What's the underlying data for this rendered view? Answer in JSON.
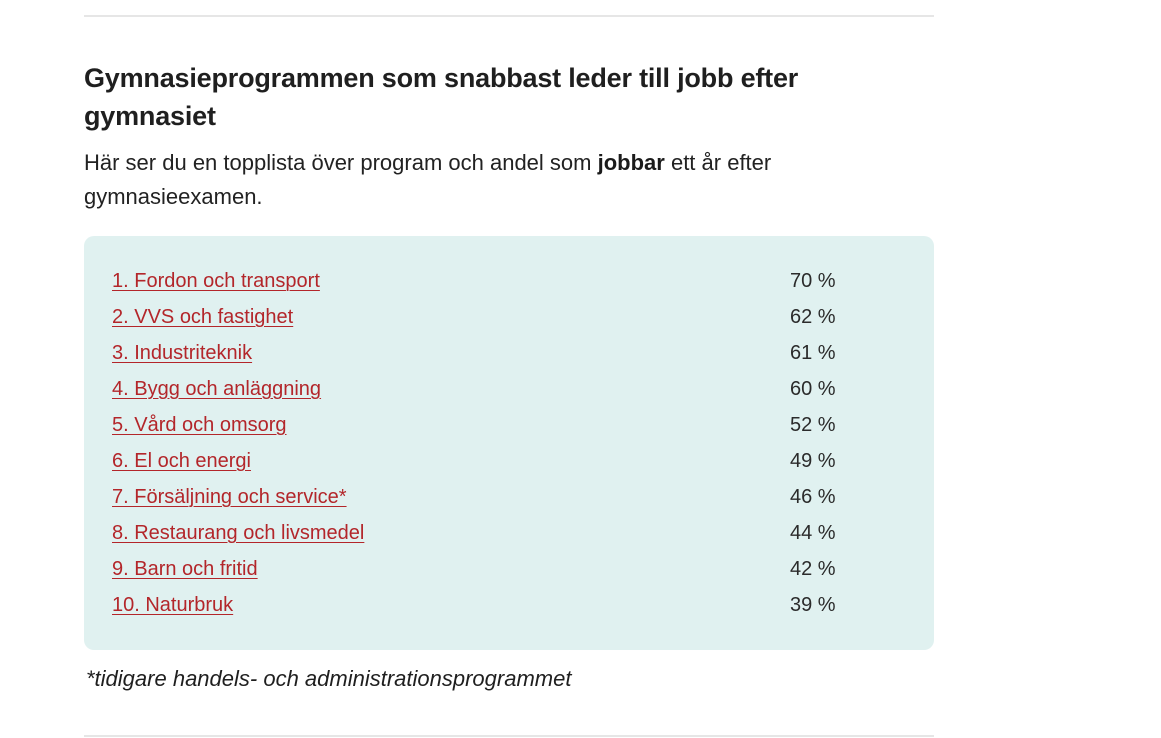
{
  "article": {
    "title": "Gymnasieprogrammen som snabbast leder till jobb efter gymnasiet",
    "intro_before": "Här ser du en topplista över program och andel som ",
    "intro_bold": "jobbar",
    "intro_after": " ett år efter gymnasieexamen.",
    "footnote": "*tidigare handels- och administrationsprogrammet"
  },
  "programs": [
    {
      "label": "1. Fordon och transport",
      "percent": "70 %"
    },
    {
      "label": "2. VVS och fastighet",
      "percent": "62 %"
    },
    {
      "label": "3. Industriteknik",
      "percent": "61 %"
    },
    {
      "label": "4. Bygg och anläggning",
      "percent": "60 %"
    },
    {
      "label": "5. Vård och omsorg",
      "percent": "52 %"
    },
    {
      "label": "6. El och energi",
      "percent": "49 %"
    },
    {
      "label": "7. Försäljning och service*",
      "percent": "46 %"
    },
    {
      "label": "8. Restaurang och livsmedel",
      "percent": "44 %"
    },
    {
      "label": "9. Barn och fritid",
      "percent": "42 %"
    },
    {
      "label": "10. Naturbruk",
      "percent": "39 %"
    }
  ],
  "colors": {
    "link": "#b3262a",
    "box_background": "#e0f1f0",
    "divider": "#e6e6e6"
  }
}
